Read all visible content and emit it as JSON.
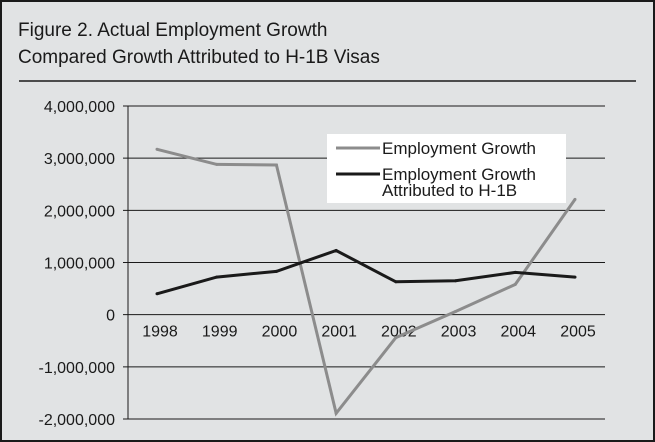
{
  "title_lines": [
    "Figure 2. Actual Employment Growth",
    "Compared Growth Attributed to H-1B Visas"
  ],
  "colors": {
    "background": "#e1e3e4",
    "employment": "#8c8c8c",
    "h1b": "#1a1a1a",
    "legend_bg": "#ffffff"
  },
  "chart_data": {
    "type": "line",
    "title": "Figure 2. Actual Employment Growth Compared Growth Attributed to H-1B Visas",
    "xlabel": "",
    "ylabel": "",
    "categories": [
      "1998",
      "1999",
      "2000",
      "2001",
      "2002",
      "2003",
      "2004",
      "2005"
    ],
    "ylim": [
      -2000000,
      4000000
    ],
    "yticks": [
      4000000,
      3000000,
      2000000,
      1000000,
      0,
      -1000000,
      -2000000
    ],
    "ytick_labels": [
      "4,000,000",
      "3,000,000",
      "2,000,000",
      "1,000,000",
      "0",
      "-1,000,000",
      "-2,000,000"
    ],
    "grid": true,
    "legend_position": "top-right",
    "series": [
      {
        "name": "Employment Growth",
        "legend_lines": [
          "Employment Growth"
        ],
        "color": "#8c8c8c",
        "values": [
          3170000,
          2880000,
          2870000,
          -1890000,
          -440000,
          60000,
          580000,
          2210000
        ]
      },
      {
        "name": "Employment Growth Attributed to H-1B",
        "legend_lines": [
          "Employment Growth",
          "Attributed to H-1B"
        ],
        "color": "#1a1a1a",
        "values": [
          400000,
          720000,
          830000,
          1230000,
          630000,
          650000,
          810000,
          720000
        ]
      }
    ]
  }
}
